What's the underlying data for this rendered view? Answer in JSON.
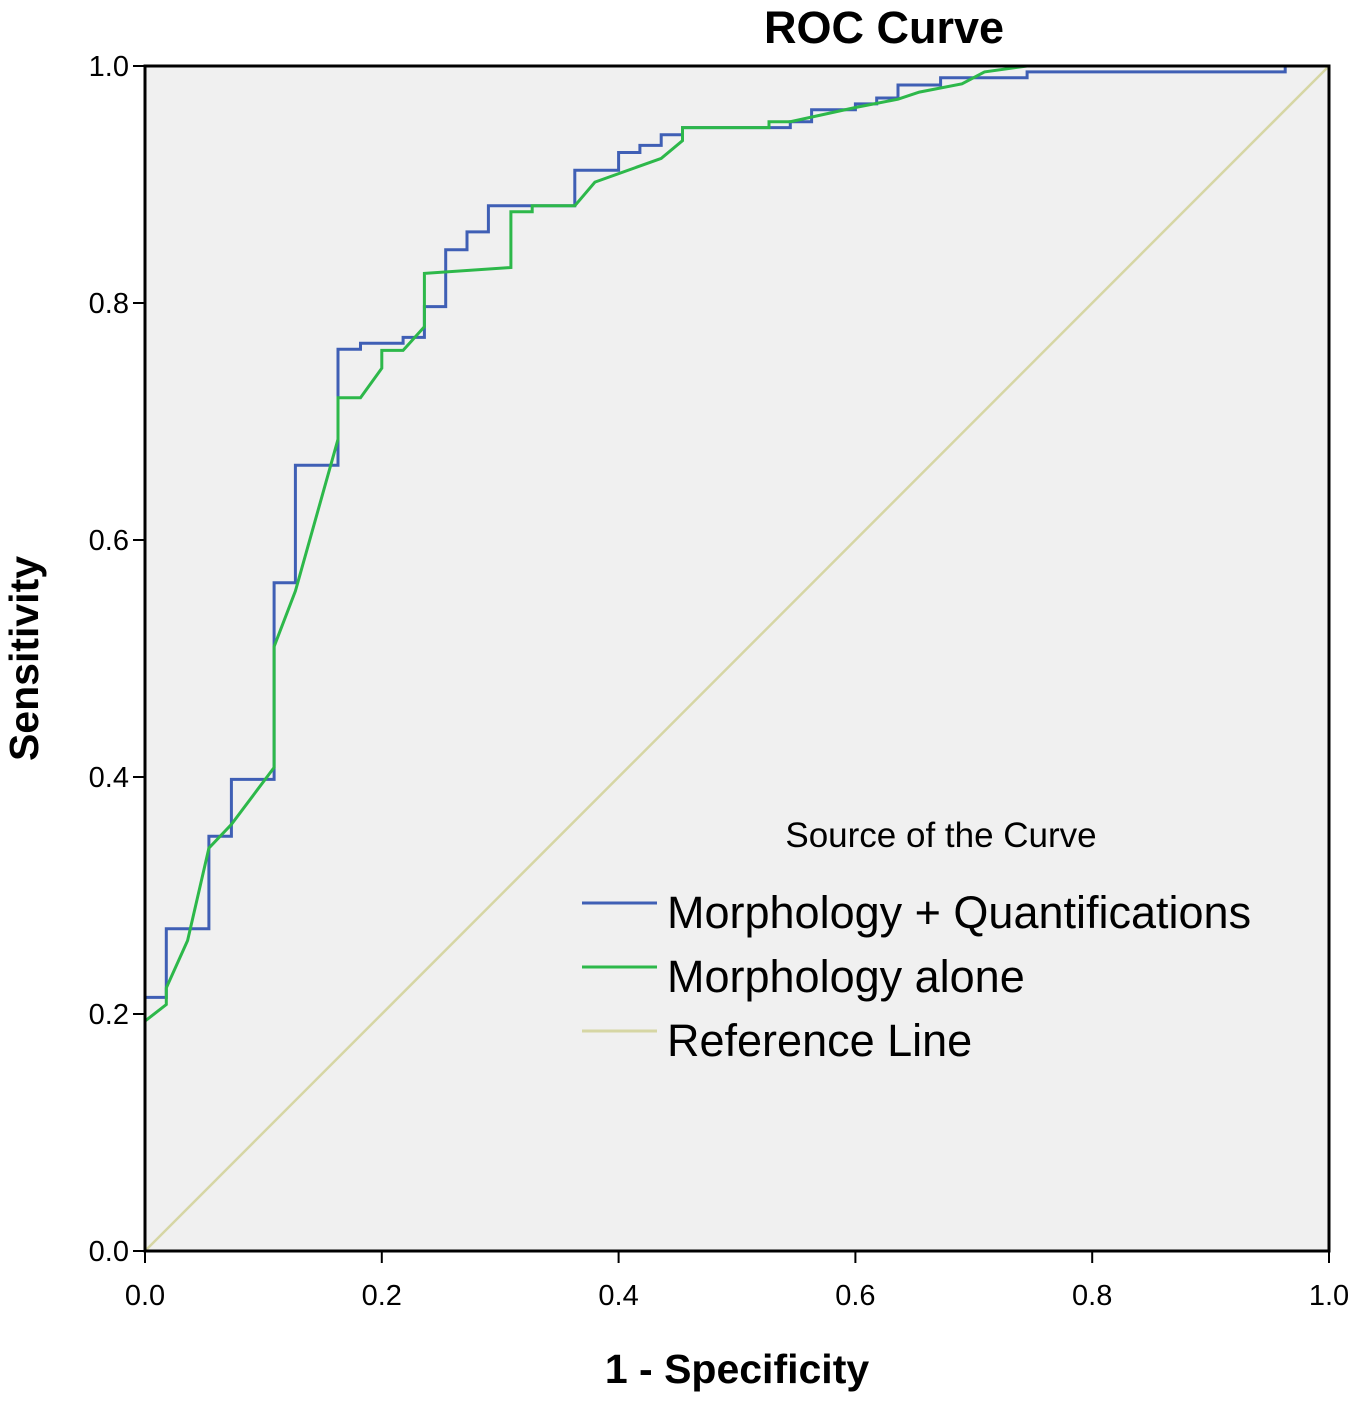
{
  "chart_data": {
    "type": "line",
    "title": "ROC Curve",
    "xlabel": "1 - Specificity",
    "ylabel": "Sensitivity",
    "xlim": [
      0,
      1
    ],
    "ylim": [
      0,
      1
    ],
    "xticks": [
      "0.0",
      "0.2",
      "0.4",
      "0.6",
      "0.8",
      "1.0"
    ],
    "yticks": [
      "0.0",
      "0.2",
      "0.4",
      "0.6",
      "0.8",
      "1.0"
    ],
    "grid": false,
    "legend": {
      "title": "Source of the Curve",
      "placement": "bottom-right"
    },
    "series": [
      {
        "name": "Morphology + Quantifications",
        "color": "#3f5fb5",
        "step": true,
        "points": [
          [
            0.0,
            0.0
          ],
          [
            0.0,
            0.214
          ],
          [
            0.018,
            0.214
          ],
          [
            0.018,
            0.272
          ],
          [
            0.054,
            0.272
          ],
          [
            0.054,
            0.35
          ],
          [
            0.073,
            0.35
          ],
          [
            0.073,
            0.398
          ],
          [
            0.109,
            0.398
          ],
          [
            0.109,
            0.564
          ],
          [
            0.127,
            0.564
          ],
          [
            0.127,
            0.663
          ],
          [
            0.163,
            0.663
          ],
          [
            0.163,
            0.761
          ],
          [
            0.182,
            0.761
          ],
          [
            0.182,
            0.766
          ],
          [
            0.218,
            0.766
          ],
          [
            0.218,
            0.771
          ],
          [
            0.236,
            0.771
          ],
          [
            0.236,
            0.797
          ],
          [
            0.254,
            0.797
          ],
          [
            0.254,
            0.845
          ],
          [
            0.272,
            0.845
          ],
          [
            0.272,
            0.86
          ],
          [
            0.29,
            0.86
          ],
          [
            0.29,
            0.882
          ],
          [
            0.363,
            0.882
          ],
          [
            0.363,
            0.912
          ],
          [
            0.4,
            0.912
          ],
          [
            0.4,
            0.927
          ],
          [
            0.418,
            0.927
          ],
          [
            0.418,
            0.933
          ],
          [
            0.436,
            0.933
          ],
          [
            0.436,
            0.942
          ],
          [
            0.454,
            0.942
          ],
          [
            0.454,
            0.948
          ],
          [
            0.545,
            0.948
          ],
          [
            0.545,
            0.953
          ],
          [
            0.563,
            0.953
          ],
          [
            0.563,
            0.963
          ],
          [
            0.6,
            0.963
          ],
          [
            0.6,
            0.968
          ],
          [
            0.618,
            0.968
          ],
          [
            0.618,
            0.973
          ],
          [
            0.636,
            0.973
          ],
          [
            0.636,
            0.984
          ],
          [
            0.672,
            0.984
          ],
          [
            0.672,
            0.99
          ],
          [
            0.745,
            0.99
          ],
          [
            0.745,
            0.995
          ],
          [
            0.963,
            0.995
          ],
          [
            0.963,
            1.0
          ],
          [
            1.0,
            1.0
          ]
        ]
      },
      {
        "name": "Morphology alone",
        "color": "#2db84a",
        "step": false,
        "points": [
          [
            0.0,
            0.194
          ],
          [
            0.018,
            0.208
          ],
          [
            0.018,
            0.222
          ],
          [
            0.036,
            0.262
          ],
          [
            0.054,
            0.34
          ],
          [
            0.073,
            0.36
          ],
          [
            0.109,
            0.408
          ],
          [
            0.109,
            0.51
          ],
          [
            0.127,
            0.557
          ],
          [
            0.163,
            0.685
          ],
          [
            0.163,
            0.72
          ],
          [
            0.182,
            0.72
          ],
          [
            0.2,
            0.745
          ],
          [
            0.2,
            0.76
          ],
          [
            0.218,
            0.76
          ],
          [
            0.236,
            0.78
          ],
          [
            0.236,
            0.825
          ],
          [
            0.309,
            0.83
          ],
          [
            0.309,
            0.877
          ],
          [
            0.327,
            0.877
          ],
          [
            0.327,
            0.882
          ],
          [
            0.363,
            0.882
          ],
          [
            0.38,
            0.902
          ],
          [
            0.436,
            0.922
          ],
          [
            0.454,
            0.937
          ],
          [
            0.454,
            0.948
          ],
          [
            0.527,
            0.948
          ],
          [
            0.527,
            0.953
          ],
          [
            0.545,
            0.953
          ],
          [
            0.6,
            0.965
          ],
          [
            0.636,
            0.972
          ],
          [
            0.654,
            0.978
          ],
          [
            0.69,
            0.985
          ],
          [
            0.709,
            0.995
          ],
          [
            0.745,
            1.0
          ],
          [
            1.0,
            1.0
          ]
        ]
      },
      {
        "name": "Reference Line",
        "color": "#d6d6a4",
        "step": false,
        "points": [
          [
            0.0,
            0.0
          ],
          [
            1.0,
            1.0
          ]
        ]
      }
    ]
  }
}
